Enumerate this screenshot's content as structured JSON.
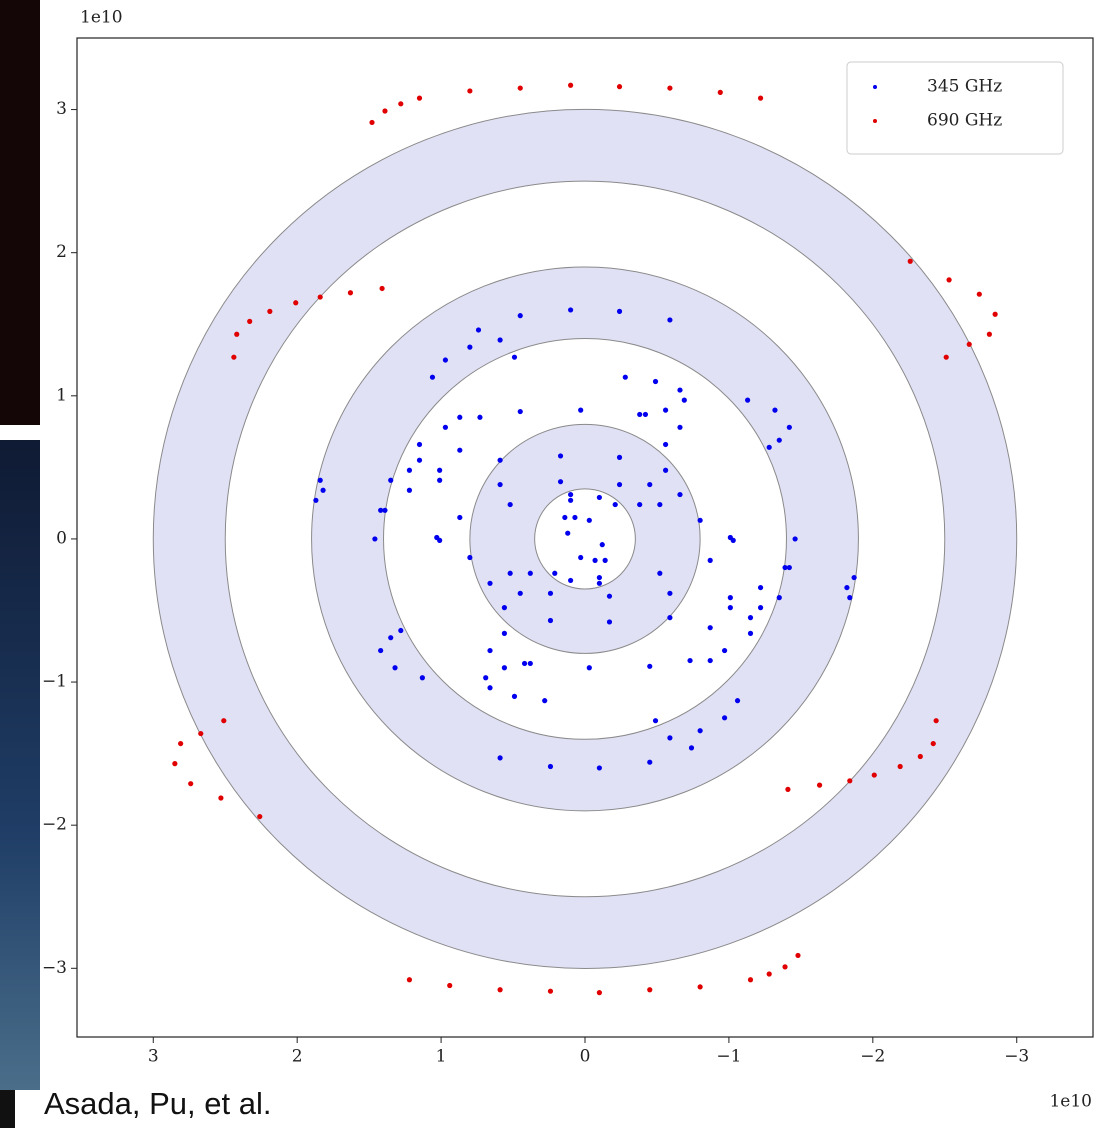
{
  "caption": "Asada, Pu, et al.",
  "chart_data": {
    "type": "scatter",
    "x_offset_label": "1e10",
    "y_offset_label": "1e10",
    "xlim": [
      3.53,
      -3.53
    ],
    "ylim": [
      -3.48,
      3.5
    ],
    "xticks": [
      3,
      2,
      1,
      0,
      {
        "value": -1,
        "label": "−1"
      },
      {
        "value": -2,
        "label": "−2"
      },
      {
        "value": -3,
        "label": "−3"
      }
    ],
    "yticks": [
      {
        "value": -3,
        "label": "−3"
      },
      {
        "value": -2,
        "label": "−2"
      },
      {
        "value": -1,
        "label": "−1"
      },
      0,
      1,
      2,
      3
    ],
    "legend": "upper right",
    "rings": [
      {
        "inner": 2.5,
        "outer": 3.0
      },
      {
        "inner": 1.4,
        "outer": 1.9
      },
      {
        "inner": 0.35,
        "outer": 0.8
      }
    ],
    "ring_color": "#e1e1f6",
    "series": [
      {
        "name": "345 GHz",
        "color": "#0000ee",
        "x": [
          0.74,
          0.45,
          0.1,
          -0.24,
          -0.59,
          1.06,
          0.97,
          0.8,
          0.59,
          0.49,
          -0.28,
          -0.49,
          -0.66,
          -0.69,
          -0.56,
          -0.42,
          -1.13,
          -1.32,
          -1.42,
          -1.35,
          -1.28,
          0.87,
          0.45,
          0.03,
          -0.38,
          -0.66,
          -0.56,
          1.22,
          1.15,
          0.97,
          0.73,
          1.01,
          0.59,
          0.17,
          -0.24,
          -0.56,
          -0.45,
          1.42,
          1.35,
          1.15,
          0.87,
          0.59,
          0.17,
          -0.24,
          -0.66,
          -0.52,
          1.46,
          1.39,
          1.22,
          1.01,
          0.1,
          -0.1,
          -0.21,
          1.84,
          1.82,
          1.87,
          1.01,
          0.87,
          0.52,
          0.1,
          -0.38,
          -0.8,
          -1.03,
          0.14,
          0.07,
          -0.03,
          0.12,
          -0.74,
          -0.45,
          -0.1,
          0.24,
          0.59,
          -1.06,
          -0.97,
          -0.8,
          -0.59,
          -0.49,
          0.28,
          0.49,
          0.66,
          0.69,
          0.56,
          0.42,
          1.13,
          1.32,
          1.42,
          1.35,
          1.28,
          -0.87,
          -0.45,
          -0.03,
          0.38,
          0.66,
          0.56,
          -1.22,
          -1.15,
          -0.97,
          -0.73,
          -1.01,
          -0.59,
          -0.17,
          0.24,
          0.56,
          0.45,
          -1.42,
          -1.35,
          -1.15,
          -0.87,
          -0.59,
          -0.17,
          0.24,
          0.66,
          0.52,
          -1.46,
          -1.39,
          -1.22,
          -1.01,
          -0.1,
          0.1,
          0.21,
          -1.84,
          -1.82,
          -1.87,
          -1.01,
          -0.87,
          -0.52,
          -0.1,
          0.38,
          0.8,
          1.03,
          -0.14,
          -0.07,
          0.03,
          -0.12
        ],
        "values": [
          1.46,
          1.56,
          1.6,
          1.59,
          1.53,
          1.13,
          1.25,
          1.34,
          1.39,
          1.27,
          1.13,
          1.1,
          1.04,
          0.97,
          0.9,
          0.87,
          0.97,
          0.9,
          0.78,
          0.69,
          0.64,
          0.85,
          0.89,
          0.9,
          0.87,
          0.78,
          0.66,
          0.48,
          0.66,
          0.78,
          0.85,
          0.48,
          0.55,
          0.58,
          0.57,
          0.48,
          0.38,
          0.2,
          0.41,
          0.55,
          0.62,
          0.38,
          0.4,
          0.38,
          0.31,
          0.24,
          0,
          0.2,
          0.34,
          0.41,
          0.31,
          0.29,
          0.24,
          0.41,
          0.34,
          0.27,
          -0.01,
          0.15,
          0.24,
          0.27,
          0.24,
          0.13,
          -0.01,
          0.15,
          0.15,
          0.13,
          0.04,
          -1.46,
          -1.56,
          -1.6,
          -1.59,
          -1.53,
          -1.13,
          -1.25,
          -1.34,
          -1.39,
          -1.27,
          -1.13,
          -1.1,
          -1.04,
          -0.97,
          -0.9,
          -0.87,
          -0.97,
          -0.9,
          -0.78,
          -0.69,
          -0.64,
          -0.85,
          -0.89,
          -0.9,
          -0.87,
          -0.78,
          -0.66,
          -0.48,
          -0.66,
          -0.78,
          -0.85,
          -0.48,
          -0.55,
          -0.58,
          -0.57,
          -0.48,
          -0.38,
          -0.2,
          -0.41,
          -0.55,
          -0.62,
          -0.38,
          -0.4,
          -0.38,
          -0.31,
          -0.24,
          0,
          -0.2,
          -0.34,
          -0.41,
          -0.31,
          -0.29,
          -0.24,
          -0.41,
          -0.34,
          -0.27,
          0.01,
          -0.15,
          -0.24,
          -0.27,
          -0.24,
          -0.13,
          0.01,
          -0.15,
          -0.15,
          -0.13,
          -0.04
        ]
      },
      {
        "name": "690 GHz",
        "color": "#e00000",
        "x": [
          1.48,
          1.39,
          1.28,
          1.15,
          0.8,
          0.45,
          0.1,
          -0.24,
          -0.59,
          -0.94,
          -1.22,
          2.44,
          2.42,
          2.33,
          2.19,
          2.01,
          1.84,
          1.63,
          1.41,
          -2.26,
          -2.53,
          -2.74,
          -2.85,
          -2.81,
          -2.67,
          -2.51,
          -1.48,
          -1.39,
          -1.28,
          -1.15,
          -0.8,
          -0.45,
          -0.1,
          0.24,
          0.59,
          0.94,
          1.22,
          -2.44,
          -2.42,
          -2.33,
          -2.19,
          -2.01,
          -1.84,
          -1.63,
          -1.41,
          2.26,
          2.53,
          2.74,
          2.85,
          2.81,
          2.67,
          2.51
        ],
        "values": [
          2.91,
          2.99,
          3.04,
          3.08,
          3.13,
          3.15,
          3.17,
          3.16,
          3.15,
          3.12,
          3.08,
          1.27,
          1.43,
          1.52,
          1.59,
          1.65,
          1.69,
          1.72,
          1.75,
          1.94,
          1.81,
          1.71,
          1.57,
          1.43,
          1.36,
          1.27,
          -2.91,
          -2.99,
          -3.04,
          -3.08,
          -3.13,
          -3.15,
          -3.17,
          -3.16,
          -3.15,
          -3.12,
          -3.08,
          -1.27,
          -1.43,
          -1.52,
          -1.59,
          -1.65,
          -1.69,
          -1.72,
          -1.75,
          -1.94,
          -1.81,
          -1.71,
          -1.57,
          -1.43,
          -1.36,
          -1.27
        ]
      }
    ]
  }
}
